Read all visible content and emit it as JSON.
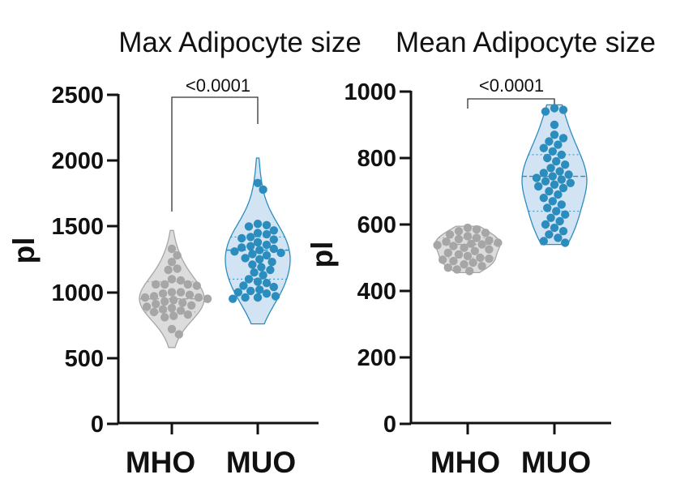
{
  "chart_data": [
    {
      "type": "violin",
      "title": "Max Adipocyte size",
      "ylabel": "pl",
      "xlabel": "",
      "ylim": [
        0,
        2500
      ],
      "yticks": [
        "0",
        "500",
        "1000",
        "1500",
        "2000",
        "2500"
      ],
      "categories": [
        "MHO",
        "MUO"
      ],
      "annotation": "<0.0001",
      "series": [
        {
          "name": "MHO",
          "color": "#a6a6a6",
          "fill": "#dcdcdc",
          "range": [
            580,
            1470
          ],
          "median": 950,
          "quartiles": [
            850,
            1080
          ],
          "points": [
            1330,
            1280,
            1230,
            1180,
            1170,
            1100,
            1090,
            1060,
            1060,
            1060,
            1050,
            1000,
            1000,
            990,
            980,
            970,
            960,
            960,
            950,
            950,
            940,
            930,
            920,
            910,
            900,
            890,
            880,
            870,
            860,
            850,
            830,
            820,
            810,
            720,
            680
          ]
        },
        {
          "name": "MUO",
          "color": "#2b8cbe",
          "fill": "#d2e4f3",
          "range": [
            760,
            2020
          ],
          "median": 1320,
          "quartiles": [
            1100,
            1420
          ],
          "points": [
            1830,
            1780,
            1520,
            1510,
            1500,
            1470,
            1450,
            1440,
            1420,
            1410,
            1400,
            1380,
            1360,
            1350,
            1340,
            1330,
            1320,
            1310,
            1300,
            1290,
            1280,
            1260,
            1250,
            1230,
            1210,
            1190,
            1170,
            1150,
            1130,
            1100,
            1080,
            1070,
            1050,
            1040,
            1020,
            1010,
            1000,
            990,
            970,
            960,
            960,
            950
          ]
        }
      ]
    },
    {
      "type": "violin",
      "title": "Mean Adipocyte size",
      "ylabel": "pl",
      "xlabel": "",
      "ylim": [
        0,
        1000
      ],
      "yticks": [
        "0",
        "200",
        "400",
        "600",
        "800",
        "1000"
      ],
      "categories": [
        "MHO",
        "MUO"
      ],
      "annotation": "<0.0001",
      "series": [
        {
          "name": "MHO",
          "color": "#a6a6a6",
          "fill": "#dcdcdc",
          "range": [
            455,
            595
          ],
          "median": 540,
          "quartiles": [
            500,
            560
          ],
          "points": [
            590,
            585,
            580,
            575,
            570,
            565,
            560,
            556,
            552,
            548,
            545,
            542,
            540,
            538,
            535,
            530,
            525,
            520,
            515,
            510,
            505,
            500,
            497,
            494,
            490,
            485,
            480,
            475,
            470,
            465,
            460
          ]
        },
        {
          "name": "MUO",
          "color": "#2b8cbe",
          "fill": "#d2e4f3",
          "range": [
            540,
            960
          ],
          "median": 745,
          "quartiles": [
            640,
            810
          ],
          "points": [
            950,
            945,
            940,
            900,
            870,
            860,
            850,
            840,
            830,
            820,
            810,
            800,
            790,
            780,
            770,
            760,
            755,
            750,
            745,
            740,
            735,
            730,
            725,
            720,
            715,
            710,
            700,
            690,
            680,
            670,
            660,
            650,
            640,
            630,
            620,
            610,
            600,
            590,
            580,
            570,
            560,
            550,
            545
          ]
        }
      ]
    }
  ]
}
